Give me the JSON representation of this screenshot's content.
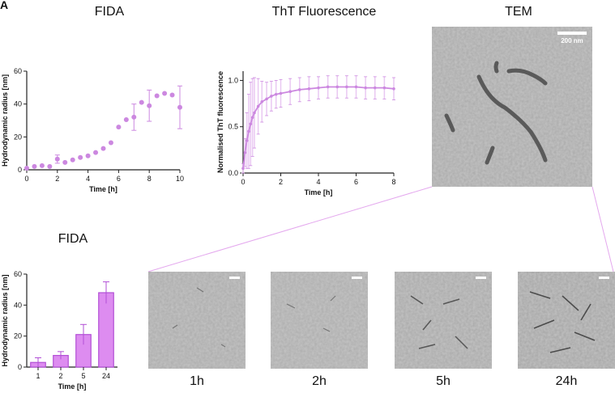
{
  "panel_letter": "A",
  "titles": {
    "fida_top": "FIDA",
    "tht": "ThT Fluorescence",
    "tem": "TEM",
    "fida_bottom": "FIDA"
  },
  "tem_scalebar_label": "200 nm",
  "tem_time_labels": [
    "1h",
    "2h",
    "5h",
    "24h"
  ],
  "colors": {
    "accent": "#cc88e0",
    "accent_light": "#e9c8f2",
    "bar_fill": "#dd8cf0",
    "bar_edge": "#b24fd6"
  },
  "chart_data": [
    {
      "type": "scatter",
      "xlabel": "Time [h]",
      "ylabel": "Hydrodynamic radius [nm]",
      "xlim": [
        0,
        10
      ],
      "ylim": [
        0,
        60
      ],
      "xticks": [
        0,
        2,
        4,
        6,
        8,
        10
      ],
      "yticks": [
        0,
        20,
        40,
        60
      ],
      "points": [
        {
          "x": 0,
          "y": 1,
          "err": 0
        },
        {
          "x": 0.5,
          "y": 2,
          "err": 0
        },
        {
          "x": 1,
          "y": 2.5,
          "err": 0
        },
        {
          "x": 1.5,
          "y": 2,
          "err": 0
        },
        {
          "x": 2,
          "y": 6.5,
          "err": 2.5
        },
        {
          "x": 2.5,
          "y": 4.5,
          "err": 0
        },
        {
          "x": 3,
          "y": 6,
          "err": 0
        },
        {
          "x": 3.5,
          "y": 7.5,
          "err": 0
        },
        {
          "x": 4,
          "y": 8.5,
          "err": 0
        },
        {
          "x": 4.5,
          "y": 10.5,
          "err": 0
        },
        {
          "x": 5,
          "y": 13,
          "err": 0
        },
        {
          "x": 5.5,
          "y": 16.5,
          "err": 0
        },
        {
          "x": 6,
          "y": 26,
          "err": 0
        },
        {
          "x": 6.5,
          "y": 30.5,
          "err": 0
        },
        {
          "x": 7,
          "y": 32,
          "err": 8
        },
        {
          "x": 7.5,
          "y": 41,
          "err": 0
        },
        {
          "x": 8,
          "y": 39,
          "err": 9.5
        },
        {
          "x": 8.5,
          "y": 45,
          "err": 0
        },
        {
          "x": 9,
          "y": 46.5,
          "err": 0
        },
        {
          "x": 9.5,
          "y": 45.5,
          "err": 0
        },
        {
          "x": 10,
          "y": 38,
          "err": 13
        }
      ]
    },
    {
      "type": "line",
      "xlabel": "Time [h]",
      "ylabel": "Normalised ThT fluorescence",
      "xlim": [
        0,
        8
      ],
      "ylim": [
        0,
        1.1
      ],
      "xticks": [
        0,
        2,
        4,
        6,
        8
      ],
      "yticks": [
        0.0,
        0.5,
        1.0
      ],
      "x": [
        0,
        0.1,
        0.2,
        0.3,
        0.4,
        0.5,
        0.6,
        0.8,
        1.0,
        1.25,
        1.5,
        1.75,
        2.0,
        2.5,
        3.0,
        3.5,
        4.0,
        4.5,
        5.0,
        5.5,
        6.0,
        6.5,
        7.0,
        7.5,
        8.0
      ],
      "y": [
        0.05,
        0.22,
        0.35,
        0.45,
        0.53,
        0.6,
        0.65,
        0.72,
        0.77,
        0.8,
        0.83,
        0.85,
        0.86,
        0.88,
        0.9,
        0.91,
        0.92,
        0.93,
        0.93,
        0.93,
        0.93,
        0.92,
        0.92,
        0.92,
        0.91
      ],
      "err": [
        0.05,
        0.15,
        0.3,
        0.4,
        0.45,
        0.42,
        0.38,
        0.3,
        0.22,
        0.18,
        0.16,
        0.15,
        0.15,
        0.14,
        0.13,
        0.13,
        0.12,
        0.12,
        0.12,
        0.12,
        0.12,
        0.12,
        0.12,
        0.12,
        0.12
      ]
    },
    {
      "type": "bar",
      "xlabel": "Time [h]",
      "ylabel": "Hydrodynamic radius [nm]",
      "categories": [
        "1",
        "2",
        "5",
        "24"
      ],
      "values": [
        3,
        7.5,
        21,
        48
      ],
      "errors": [
        3,
        2.5,
        6.5,
        7
      ],
      "ylim": [
        0,
        60
      ],
      "yticks": [
        0,
        20,
        40,
        60
      ]
    }
  ]
}
